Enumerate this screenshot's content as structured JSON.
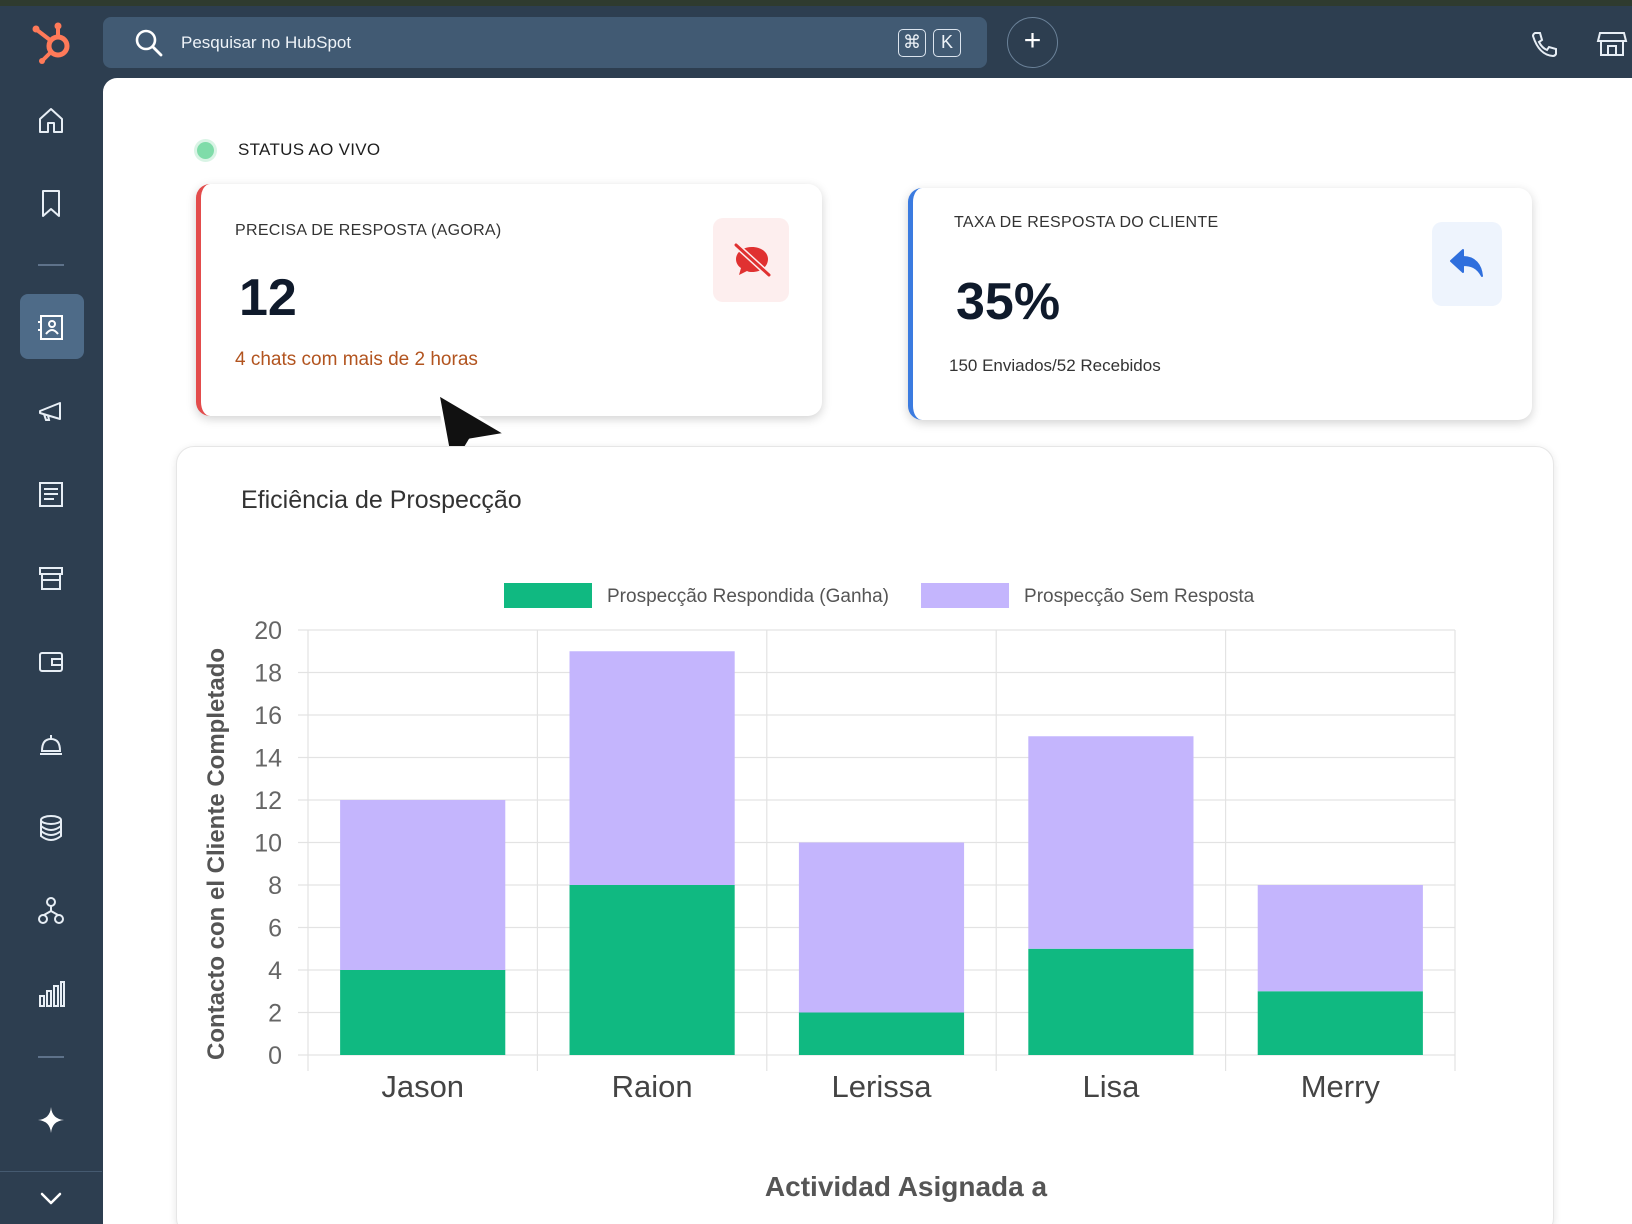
{
  "search": {
    "placeholder": "Pesquisar no HubSpot",
    "shortcut_cmd": "⌘",
    "shortcut_key": "K"
  },
  "status": {
    "label": "STATUS AO VIVO"
  },
  "cards": [
    {
      "label": "PRECISA DE RESPOSTA (AGORA)",
      "value": "12",
      "sub": "4 chats com mais de 2 horas",
      "icon": "chat-off-icon",
      "accent": "#e34c4c"
    },
    {
      "label": "TAXA DE RESPOSTA DO CLIENTE",
      "value": "35%",
      "sub": "150 Enviados/52 Recebidos",
      "icon": "reply-icon",
      "accent": "#3b7be0"
    }
  ],
  "chart": {
    "title": "Eficiência de Prospecção"
  },
  "chart_data": {
    "type": "bar",
    "stacked": true,
    "title": "Eficiência de Prospecção",
    "xlabel": "Actividad Asignada a",
    "ylabel": "Contacto con el Cliente Completado",
    "ylim": [
      0,
      20
    ],
    "yticks": [
      0,
      2,
      4,
      6,
      8,
      10,
      12,
      14,
      16,
      18,
      20
    ],
    "grid": true,
    "legend": "top",
    "categories": [
      "Jason",
      "Raion",
      "Lerissa",
      "Lisa",
      "Merry"
    ],
    "series": [
      {
        "name": "Prospecção Respondida (Ganha)",
        "color": "#10b981",
        "values": [
          4,
          8,
          2,
          5,
          3
        ]
      },
      {
        "name": "Prospecção Sem Resposta",
        "color": "#c4b5fd",
        "values": [
          8,
          11,
          8,
          10,
          5
        ]
      }
    ]
  }
}
